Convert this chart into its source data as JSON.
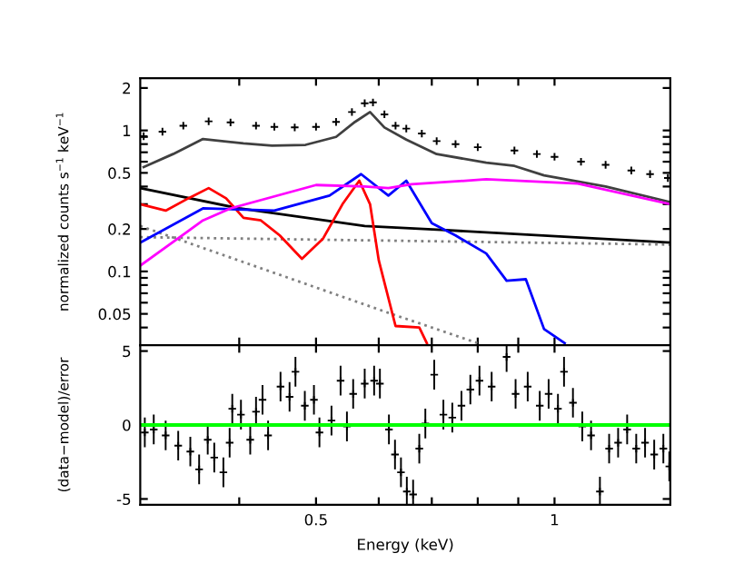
{
  "chart_data": [
    {
      "type": "line",
      "ylabel": "normalized counts s$^{−1}$ keV$^{−1}$",
      "log": "xy",
      "tick_labels": "y",
      "xlim": [
        0.3,
        1.4
      ],
      "xticks": [
        {
          "value": 0.4,
          "label": null
        },
        0.5,
        {
          "value": 0.6,
          "label": null
        },
        {
          "value": 0.7,
          "label": null
        },
        {
          "value": 0.8,
          "label": null
        },
        {
          "value": 0.9,
          "label": null
        },
        1
      ],
      "ylim": [
        0.03,
        2.35
      ],
      "yticks": [
        {
          "value": 0.03,
          "label": null
        },
        {
          "value": 0.04,
          "label": null
        },
        0.05,
        {
          "value": 0.06,
          "label": null
        },
        {
          "value": 0.07,
          "label": null
        },
        {
          "value": 0.08,
          "label": null
        },
        {
          "value": 0.09,
          "label": null
        },
        0.1,
        0.2,
        {
          "value": 0.3,
          "label": null
        },
        {
          "value": 0.4,
          "label": null
        },
        0.5,
        {
          "value": 0.6,
          "label": null
        },
        {
          "value": 0.7,
          "label": null
        },
        {
          "value": 0.8,
          "label": null
        },
        {
          "value": 0.9,
          "label": null
        },
        1,
        2
      ],
      "series": [
        {
          "type": "scatter",
          "marker": "cross",
          "color": "#000000",
          "x": [
            0.303,
            0.32,
            0.34,
            0.366,
            0.39,
            0.42,
            0.443,
            0.47,
            0.5,
            0.53,
            0.555,
            0.576,
            0.59,
            0.61,
            0.63,
            0.65,
            0.68,
            0.71,
            0.75,
            0.8,
            0.89,
            0.95,
            1.0,
            1.08,
            1.16,
            1.25,
            1.32,
            1.39
          ],
          "values": [
            0.91,
            0.98,
            1.08,
            1.16,
            1.14,
            1.08,
            1.06,
            1.05,
            1.06,
            1.15,
            1.35,
            1.56,
            1.58,
            1.3,
            1.08,
            1.03,
            0.95,
            0.84,
            0.8,
            0.76,
            0.72,
            0.68,
            0.65,
            0.6,
            0.57,
            0.52,
            0.49,
            0.46
          ]
        },
        {
          "color": "#404040",
          "line_style": "solid",
          "x": [
            0.303,
            0.33,
            0.36,
            0.405,
            0.44,
            0.485,
            0.53,
            0.56,
            0.585,
            0.61,
            0.65,
            0.71,
            0.82,
            0.89,
            0.97,
            1.16,
            1.4
          ],
          "values": [
            0.55,
            0.68,
            0.87,
            0.81,
            0.78,
            0.79,
            0.9,
            1.15,
            1.35,
            1.05,
            0.86,
            0.68,
            0.59,
            0.56,
            0.48,
            0.4,
            0.31
          ]
        },
        {
          "color": "#000000",
          "line_style": "solid",
          "x": [
            0.3,
            0.4,
            0.576,
            0.72,
            1.4
          ],
          "values": [
            0.39,
            0.28,
            0.21,
            0.197,
            0.16
          ]
        },
        {
          "color": "#808080",
          "line_style": "dotted",
          "x": [
            0.3,
            1.4
          ],
          "values": [
            0.175,
            0.155
          ]
        },
        {
          "color": "#808080",
          "line_style": "dotted",
          "x": [
            0.3,
            0.61,
            0.8
          ],
          "values": [
            0.21,
            0.052,
            0.031
          ]
        },
        {
          "color": "#ff0000",
          "line_style": "solid",
          "x": [
            0.3,
            0.323,
            0.345,
            0.366,
            0.385,
            0.405,
            0.426,
            0.45,
            0.48,
            0.51,
            0.54,
            0.567,
            0.585,
            0.6,
            0.63,
            0.675,
            0.69
          ],
          "values": [
            0.3,
            0.27,
            0.33,
            0.39,
            0.33,
            0.24,
            0.23,
            0.18,
            0.123,
            0.17,
            0.3,
            0.44,
            0.3,
            0.12,
            0.041,
            0.04,
            0.031
          ]
        },
        {
          "color": "#0000ff",
          "line_style": "solid",
          "x": [
            0.3,
            0.36,
            0.443,
            0.52,
            0.57,
            0.617,
            0.65,
            0.7,
            0.75,
            0.82,
            0.87,
            0.92,
            0.97,
            1.03
          ],
          "values": [
            0.16,
            0.28,
            0.27,
            0.345,
            0.49,
            0.345,
            0.44,
            0.22,
            0.18,
            0.134,
            0.086,
            0.088,
            0.039,
            0.031
          ]
        },
        {
          "color": "#ff00ff",
          "line_style": "solid",
          "x": [
            0.3,
            0.36,
            0.39,
            0.5,
            0.576,
            0.617,
            0.66,
            0.82,
            1.07,
            1.4
          ],
          "values": [
            0.11,
            0.23,
            0.28,
            0.41,
            0.4,
            0.39,
            0.415,
            0.45,
            0.42,
            0.3
          ]
        }
      ]
    },
    {
      "type": "scatter",
      "xlabel": "Energy (keV)",
      "ylabel": "(data−model)/error",
      "log": "x",
      "marker": "cross",
      "xlim": [
        0.3,
        1.4
      ],
      "xticks": [
        {
          "value": 0.4,
          "label": null
        },
        0.5,
        {
          "value": 0.6,
          "label": null
        },
        {
          "value": 0.7,
          "label": null
        },
        {
          "value": 0.8,
          "label": null
        },
        {
          "value": 0.9,
          "label": null
        },
        1
      ],
      "ylim": [
        -5.4,
        5.4
      ],
      "yticks": [
        -5,
        0,
        5
      ],
      "ref_lines": [
        {
          "axis": "y",
          "value": 0,
          "color": "#00ff00"
        }
      ],
      "series": [
        {
          "color": "#000000",
          "x": [
            0.304,
            0.312,
            0.323,
            0.335,
            0.347,
            0.356,
            0.365,
            0.372,
            0.382,
            0.389,
            0.392,
            0.402,
            0.413,
            0.42,
            0.428,
            0.435,
            0.451,
            0.463,
            0.471,
            0.484,
            0.497,
            0.505,
            0.523,
            0.537,
            0.547,
            0.557,
            0.576,
            0.592,
            0.602,
            0.618,
            0.629,
            0.64,
            0.651,
            0.663,
            0.675,
            0.687,
            0.705,
            0.724,
            0.743,
            0.763,
            0.783,
            0.804,
            0.833,
            0.87,
            0.893,
            0.925,
            0.958,
            0.983,
            1.01,
            1.028,
            1.055,
            1.084,
            1.112,
            1.141,
            1.172,
            1.203,
            1.235,
            1.268,
            1.301,
            1.336,
            1.372,
            1.396
          ],
          "values": [
            -0.5,
            -0.3,
            -0.7,
            -1.4,
            -1.8,
            -3.0,
            -1.0,
            -2.2,
            -3.2,
            -1.2,
            1.1,
            0.7,
            -1.0,
            0.9,
            1.7,
            -0.7,
            2.6,
            1.9,
            3.6,
            1.3,
            1.7,
            -0.5,
            0.3,
            3.0,
            -0.1,
            2.1,
            2.8,
            3.0,
            2.8,
            -0.3,
            -2.0,
            -3.2,
            -4.5,
            -4.7,
            -1.6,
            0.1,
            3.4,
            0.7,
            0.5,
            1.3,
            2.4,
            3.0,
            2.6,
            4.6,
            2.1,
            2.6,
            1.3,
            2.1,
            1.1,
            3.6,
            1.5,
            -0.1,
            -0.7,
            -4.5,
            -1.6,
            -1.2,
            -0.3,
            -1.6,
            -1.2,
            -2.0,
            -1.6,
            -2.8
          ],
          "errors": [
            1,
            1,
            1,
            1,
            1,
            1,
            1,
            1,
            1,
            1,
            1,
            1,
            1,
            1,
            1,
            1,
            1,
            1,
            1,
            1,
            1,
            1,
            1,
            1,
            1,
            1,
            1,
            1,
            1,
            1,
            1,
            1,
            1,
            1,
            1,
            1,
            1,
            1,
            1,
            1,
            1,
            1,
            1,
            1,
            1,
            1,
            1,
            1,
            1,
            1,
            1,
            1,
            1,
            1,
            1,
            1,
            1,
            1,
            1,
            1,
            1,
            1
          ]
        }
      ]
    }
  ]
}
